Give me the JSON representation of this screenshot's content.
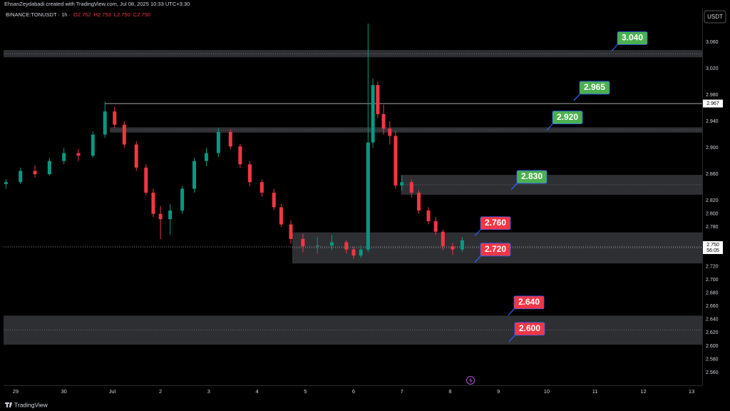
{
  "chart_data": {
    "type": "candlestick",
    "caption": "EhsanZeydabadi created with TradingView.com, Jul 08, 2025 10:33 UTC+3:30",
    "title": "BINANCE:TONUSDT · 1h ·",
    "ohlc_legend": [
      "O2.752",
      "H2.753",
      "L2.750",
      "C2.750"
    ],
    "currency": "USDT",
    "brand": "TradingView",
    "up_color": "#089981",
    "down_color": "#f23645",
    "grid": false,
    "x": [
      -0.2,
      0.1,
      0.4,
      0.7,
      1.0,
      1.3,
      1.6,
      1.85,
      2.05,
      2.25,
      2.5,
      2.7,
      2.85,
      3.0,
      3.2,
      3.45,
      3.7,
      3.95,
      4.2,
      4.45,
      4.65,
      4.85,
      5.1,
      5.35,
      5.5,
      5.7,
      5.95,
      6.25,
      6.55,
      6.85,
      7.0,
      7.15,
      7.3,
      7.4,
      7.5,
      7.62,
      7.75,
      7.87,
      8.0,
      8.2,
      8.35,
      8.55,
      8.7,
      8.85,
      9.05,
      9.25
    ],
    "open": [
      2.845,
      2.848,
      2.865,
      2.86,
      2.88,
      2.892,
      2.888,
      2.92,
      2.955,
      2.935,
      2.905,
      2.87,
      2.832,
      2.8,
      2.792,
      2.805,
      2.838,
      2.88,
      2.892,
      2.924,
      2.902,
      2.875,
      2.848,
      2.832,
      2.81,
      2.784,
      2.762,
      2.751,
      2.752,
      2.757,
      2.746,
      2.737,
      2.746,
      2.908,
      2.995,
      2.951,
      2.929,
      2.918,
      2.843,
      2.848,
      2.832,
      2.805,
      2.789,
      2.773,
      2.751,
      2.746
    ],
    "high": [
      2.852,
      2.87,
      2.873,
      2.885,
      2.9,
      2.898,
      2.925,
      2.97,
      2.962,
      2.94,
      2.91,
      2.875,
      2.838,
      2.812,
      2.815,
      2.842,
      2.885,
      2.9,
      2.93,
      2.928,
      2.906,
      2.88,
      2.852,
      2.838,
      2.815,
      2.79,
      2.77,
      2.765,
      2.768,
      2.76,
      2.75,
      2.752,
      3.088,
      3.005,
      3.0,
      2.965,
      2.94,
      2.925,
      2.858,
      2.852,
      2.836,
      2.81,
      2.795,
      2.776,
      2.756,
      2.765
    ],
    "low": [
      2.838,
      2.845,
      2.855,
      2.858,
      2.875,
      2.88,
      2.885,
      2.915,
      2.93,
      2.9,
      2.865,
      2.828,
      2.795,
      2.762,
      2.768,
      2.8,
      2.832,
      2.872,
      2.886,
      2.898,
      2.87,
      2.842,
      2.826,
      2.806,
      2.78,
      2.755,
      2.742,
      2.74,
      2.745,
      2.74,
      2.732,
      2.733,
      2.742,
      2.9,
      2.945,
      2.92,
      2.905,
      2.838,
      2.835,
      2.825,
      2.8,
      2.784,
      2.768,
      2.745,
      2.738,
      2.742
    ],
    "close": [
      2.848,
      2.865,
      2.86,
      2.88,
      2.892,
      2.888,
      2.92,
      2.955,
      2.935,
      2.905,
      2.87,
      2.832,
      2.8,
      2.792,
      2.805,
      2.838,
      2.88,
      2.892,
      2.924,
      2.902,
      2.875,
      2.848,
      2.832,
      2.81,
      2.784,
      2.762,
      2.751,
      2.752,
      2.757,
      2.746,
      2.737,
      2.746,
      2.908,
      2.995,
      2.951,
      2.929,
      2.918,
      2.843,
      2.848,
      2.832,
      2.805,
      2.789,
      2.773,
      2.751,
      2.746,
      2.76
    ],
    "xlim": [
      -0.25,
      14.22
    ],
    "ylim": [
      2.5405,
      3.1075
    ],
    "xticks": [
      {
        "value": 0,
        "label": "29"
      },
      {
        "value": 1,
        "label": "30"
      },
      {
        "value": 2,
        "label": "Jul"
      },
      {
        "value": 3,
        "label": "2"
      },
      {
        "value": 4,
        "label": "3"
      },
      {
        "value": 5,
        "label": "4"
      },
      {
        "value": 6,
        "label": "5"
      },
      {
        "value": 7,
        "label": "6"
      },
      {
        "value": 8,
        "label": "7"
      },
      {
        "value": 9,
        "label": "8"
      },
      {
        "value": 10,
        "label": "9"
      },
      {
        "value": 11,
        "label": "10"
      },
      {
        "value": 12,
        "label": "11"
      },
      {
        "value": 13,
        "label": "12"
      },
      {
        "value": 14,
        "label": "13"
      }
    ],
    "yticks": [
      {
        "value": 3.06,
        "label": "3.060"
      },
      {
        "value": 3.02,
        "label": "3.020"
      },
      {
        "value": 2.98,
        "label": "2.980"
      },
      {
        "value": 2.94,
        "label": "2.940"
      },
      {
        "value": 2.9,
        "label": "2.900"
      },
      {
        "value": 2.86,
        "label": "2.860"
      },
      {
        "value": 2.82,
        "label": "2.820"
      },
      {
        "value": 2.8,
        "label": "2.800"
      },
      {
        "value": 2.78,
        "label": "2.780"
      },
      {
        "value": 2.72,
        "label": "2.720"
      },
      {
        "value": 2.7,
        "label": "2.700"
      },
      {
        "value": 2.68,
        "label": "2.680"
      },
      {
        "value": 2.66,
        "label": "2.660"
      },
      {
        "value": 2.64,
        "label": "2.640"
      },
      {
        "value": 2.62,
        "label": "2.620"
      },
      {
        "value": 2.6,
        "label": "2.600"
      },
      {
        "value": 2.58,
        "label": "2.580"
      },
      {
        "value": 2.56,
        "label": "2.560"
      }
    ],
    "zones": [
      {
        "low": 3.037,
        "high": 3.048
      },
      {
        "low": 2.923,
        "high": 2.931,
        "from": 1.95
      },
      {
        "low": 2.829,
        "high": 2.859,
        "from": 7.98
      },
      {
        "low": 2.725,
        "high": 2.772,
        "from": 5.73
      },
      {
        "low": 2.602,
        "high": 2.646
      }
    ],
    "swing_high": {
      "value": 2.967,
      "label": "2.967",
      "from": 1.85
    },
    "current": {
      "value": 2.75,
      "label": "2.750",
      "countdown": "56:05"
    },
    "levels": [
      {
        "value": 3.04,
        "label": "3.040",
        "color": "#4caf50"
      },
      {
        "value": 2.965,
        "label": "2.965",
        "color": "#4caf50"
      },
      {
        "value": 2.92,
        "label": "2.920",
        "color": "#4caf50"
      },
      {
        "value": 2.83,
        "label": "2.830",
        "color": "#4caf50"
      },
      {
        "value": 2.76,
        "label": "2.760",
        "color": "#f23645"
      },
      {
        "value": 2.72,
        "label": "2.720",
        "color": "#f23645"
      },
      {
        "value": 2.64,
        "label": "2.640",
        "color": "#f23645"
      },
      {
        "value": 2.6,
        "label": "2.600",
        "color": "#f23645"
      }
    ]
  }
}
